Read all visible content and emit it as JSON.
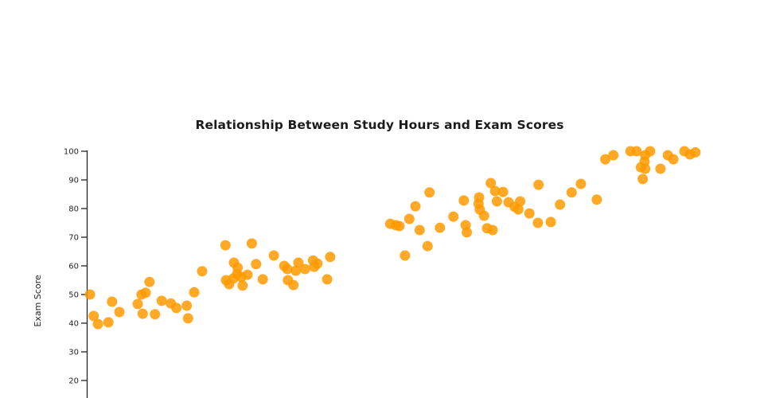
{
  "chart_data": {
    "type": "scatter",
    "title": "Relationship Between Study Hours and Exam Scores",
    "xlabel": "",
    "ylabel": "Exam Score",
    "x_axis_visible": false,
    "grid": false,
    "legend": "none",
    "y_ticks": [
      20,
      30,
      40,
      50,
      60,
      70,
      80,
      90,
      100
    ],
    "ylim": [
      13.9,
      100.6
    ],
    "xlim": [
      0,
      10.4
    ],
    "marker": {
      "color": "#FF9A00",
      "opacity": 0.85,
      "radius_px": 6.5
    },
    "axis_color": "#262626",
    "title_color": "#1c1c1c",
    "background_color": "#ffffff",
    "series_name": "students",
    "points": [
      [
        0.04,
        50.0
      ],
      [
        0.1,
        42.5
      ],
      [
        0.17,
        39.7
      ],
      [
        0.34,
        40.3
      ],
      [
        0.4,
        47.5
      ],
      [
        0.52,
        43.9
      ],
      [
        0.82,
        46.7
      ],
      [
        0.88,
        50.0
      ],
      [
        0.95,
        50.6
      ],
      [
        0.9,
        43.3
      ],
      [
        1.01,
        54.4
      ],
      [
        1.1,
        43.1
      ],
      [
        1.21,
        47.8
      ],
      [
        1.36,
        46.9
      ],
      [
        1.45,
        45.3
      ],
      [
        1.62,
        46.1
      ],
      [
        1.64,
        41.7
      ],
      [
        1.74,
        50.8
      ],
      [
        1.87,
        58.1
      ],
      [
        2.25,
        67.2
      ],
      [
        2.26,
        55.0
      ],
      [
        2.31,
        53.6
      ],
      [
        2.38,
        55.6
      ],
      [
        2.39,
        61.1
      ],
      [
        2.45,
        59.4
      ],
      [
        2.44,
        57.2
      ],
      [
        2.53,
        53.1
      ],
      [
        2.51,
        56.1
      ],
      [
        2.61,
        56.9
      ],
      [
        2.68,
        67.8
      ],
      [
        2.75,
        60.6
      ],
      [
        2.86,
        55.3
      ],
      [
        3.04,
        63.6
      ],
      [
        3.21,
        60.0
      ],
      [
        3.26,
        58.9
      ],
      [
        3.27,
        55.0
      ],
      [
        3.36,
        53.3
      ],
      [
        3.4,
        58.3
      ],
      [
        3.44,
        61.1
      ],
      [
        3.55,
        58.9
      ],
      [
        3.68,
        61.9
      ],
      [
        3.7,
        59.7
      ],
      [
        3.75,
        60.8
      ],
      [
        3.91,
        55.3
      ],
      [
        3.96,
        63.1
      ],
      [
        4.94,
        74.7
      ],
      [
        5.03,
        74.2
      ],
      [
        5.09,
        73.9
      ],
      [
        5.18,
        63.6
      ],
      [
        5.25,
        76.4
      ],
      [
        5.35,
        80.8
      ],
      [
        5.42,
        72.5
      ],
      [
        5.55,
        66.9
      ],
      [
        5.58,
        85.6
      ],
      [
        5.75,
        73.3
      ],
      [
        5.97,
        77.2
      ],
      [
        6.14,
        82.8
      ],
      [
        6.17,
        74.2
      ],
      [
        6.19,
        71.7
      ],
      [
        6.39,
        83.9
      ],
      [
        6.38,
        81.7
      ],
      [
        6.4,
        79.7
      ],
      [
        6.47,
        77.5
      ],
      [
        6.52,
        73.1
      ],
      [
        6.61,
        72.5
      ],
      [
        6.58,
        88.9
      ],
      [
        6.65,
        86.1
      ],
      [
        6.78,
        85.8
      ],
      [
        6.68,
        82.5
      ],
      [
        6.87,
        82.2
      ],
      [
        6.97,
        80.6
      ],
      [
        7.03,
        79.7
      ],
      [
        7.06,
        82.5
      ],
      [
        7.21,
        78.3
      ],
      [
        7.35,
        75.0
      ],
      [
        7.36,
        88.3
      ],
      [
        7.56,
        75.3
      ],
      [
        7.71,
        81.4
      ],
      [
        7.9,
        85.6
      ],
      [
        8.05,
        88.6
      ],
      [
        8.31,
        83.1
      ],
      [
        8.45,
        97.2
      ],
      [
        8.58,
        98.6
      ],
      [
        8.86,
        100.0
      ],
      [
        8.96,
        100.0
      ],
      [
        9.1,
        98.6
      ],
      [
        9.18,
        100.0
      ],
      [
        9.09,
        96.4
      ],
      [
        9.03,
        94.4
      ],
      [
        9.1,
        93.9
      ],
      [
        9.06,
        90.3
      ],
      [
        9.35,
        93.9
      ],
      [
        9.47,
        98.6
      ],
      [
        9.56,
        97.2
      ],
      [
        9.74,
        100.0
      ],
      [
        9.83,
        98.9
      ],
      [
        9.92,
        99.6
      ]
    ]
  }
}
